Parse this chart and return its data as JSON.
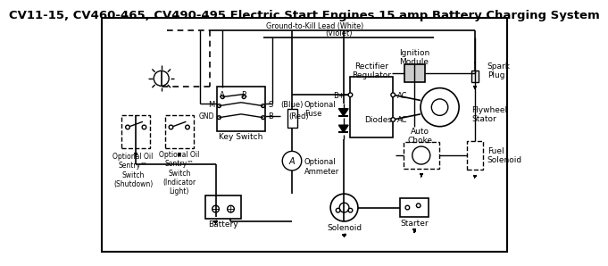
{
  "title": "CV11-15, CV460-465, CV490-495 Electric Start Engines 15 amp Battery Charging System",
  "title_fontsize": 9.5,
  "bg_color": "#ffffff",
  "line_color": "#000000",
  "text_color": "#000000",
  "ground_kill": "Ground-to-Kill Lead (White)",
  "violet": "(Violet)",
  "blue": "(Blue)",
  "red": "(Red)"
}
